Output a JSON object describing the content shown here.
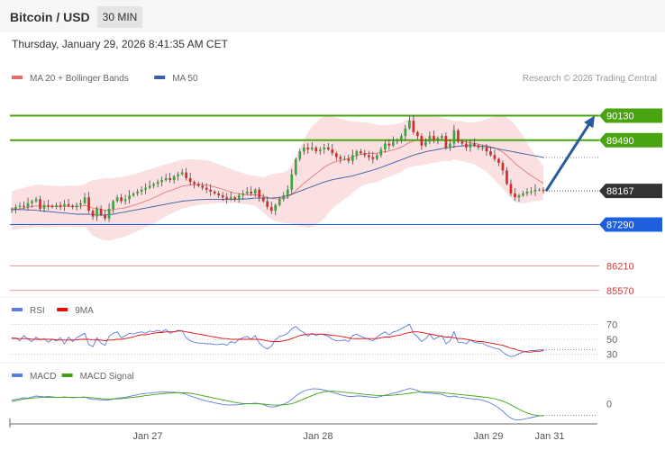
{
  "header": {
    "title": "Bitcoin / USD",
    "timeframe": "30 MIN",
    "datetime": "Thursday, January 29, 2026 8:41:35 AM CET"
  },
  "colors": {
    "bull": "#3fa33f",
    "bear": "#d62b2b",
    "bb_fill": "#f5c6c6",
    "ma20": "#e86b6b",
    "ma50": "#3a5ea8",
    "resistance": "#4aa310",
    "support": "#1e5fe0",
    "target_line": "#e05a5a",
    "arrow": "#2a5aa0",
    "rsi": "#5b7fe0",
    "rsi_ma": "#e01010",
    "macd": "#5b7fe0",
    "macd_signal": "#3fa310"
  },
  "chart_data": [
    {
      "type": "candlestick",
      "legend": [
        {
          "label": "MA 20 + Bollinger Bands",
          "color": "#e86b6b"
        },
        {
          "label": "MA 50",
          "color": "#3a5ea8"
        }
      ],
      "watermark": "Research © 2026 Trading Central",
      "ylim": [
        85400,
        90800
      ],
      "x_labels": [
        "Jan 27",
        "Jan 28",
        "Jan 29",
        "Jan 31"
      ],
      "levels": [
        {
          "value": 90130,
          "label": "90130",
          "kind": "resistance"
        },
        {
          "value": 89490,
          "label": "89490",
          "kind": "resistance"
        },
        {
          "value": 87290,
          "label": "87290",
          "kind": "support"
        },
        {
          "value": 86210,
          "label": "86210",
          "kind": "target"
        },
        {
          "value": 85570,
          "label": "85570",
          "kind": "target"
        }
      ],
      "last_price": {
        "value": 88167,
        "label": "88167"
      },
      "forecast_arrow": {
        "from": 88167,
        "to": 90130
      },
      "closes": [
        87700,
        87750,
        87780,
        87750,
        87850,
        87900,
        87950,
        87700,
        87800,
        87780,
        87750,
        87800,
        87760,
        87820,
        87780,
        87750,
        87800,
        87850,
        88000,
        87650,
        87500,
        87700,
        87550,
        87450,
        87700,
        87900,
        88000,
        87900,
        87950,
        88050,
        88100,
        88150,
        88200,
        88250,
        88300,
        88350,
        88400,
        88450,
        88500,
        88450,
        88550,
        88600,
        88650,
        88500,
        88400,
        88350,
        88300,
        88250,
        88200,
        88150,
        88100,
        88050,
        88000,
        87950,
        88000,
        87950,
        88050,
        88100,
        88150,
        88100,
        88200,
        88000,
        87900,
        87750,
        87650,
        87800,
        87950,
        88050,
        88200,
        88600,
        89000,
        89200,
        89300,
        89250,
        89300,
        89200,
        89250,
        89300,
        89250,
        89150,
        89050,
        89000,
        89000,
        88950,
        89100,
        89200,
        89150,
        89100,
        89050,
        89000,
        89100,
        89250,
        89400,
        89350,
        89450,
        89500,
        89600,
        89800,
        90000,
        89700,
        89600,
        89350,
        89450,
        89600,
        89500,
        89550,
        89600,
        89300,
        89400,
        89750,
        89450,
        89400,
        89300,
        89400,
        89350,
        89300,
        89300,
        89200,
        89100,
        89000,
        88900,
        88700,
        88350,
        88100,
        88000,
        88050,
        88100,
        88150,
        88150,
        88200,
        88200,
        88167
      ],
      "ma20": [
        87650,
        87680,
        87700,
        87720,
        87740,
        87760,
        87780,
        87770,
        87770,
        87760,
        87760,
        87760,
        87760,
        87770,
        87770,
        87760,
        87760,
        87770,
        87790,
        87760,
        87720,
        87710,
        87690,
        87660,
        87660,
        87680,
        87700,
        87710,
        87730,
        87760,
        87790,
        87820,
        87860,
        87900,
        87940,
        87990,
        88040,
        88090,
        88140,
        88170,
        88210,
        88250,
        88290,
        88310,
        88320,
        88330,
        88330,
        88330,
        88320,
        88300,
        88270,
        88240,
        88210,
        88170,
        88140,
        88110,
        88090,
        88080,
        88070,
        88060,
        88070,
        88050,
        88030,
        88000,
        87970,
        87960,
        87960,
        87970,
        88010,
        88080,
        88170,
        88270,
        88370,
        88450,
        88540,
        88620,
        88700,
        88780,
        88850,
        88900,
        88940,
        88960,
        88990,
        89010,
        89050,
        89090,
        89120,
        89140,
        89150,
        89150,
        89150,
        89170,
        89190,
        89210,
        89240,
        89270,
        89310,
        89370,
        89430,
        89470,
        89490,
        89490,
        89500,
        89510,
        89510,
        89510,
        89510,
        89500,
        89480,
        89500,
        89480,
        89460,
        89440,
        89420,
        89410,
        89390,
        89370,
        89350,
        89320,
        89290,
        89240,
        89180,
        89090,
        88990,
        88890,
        88800,
        88720,
        88640,
        88570,
        88500,
        88430,
        88370
      ],
      "bb_upper": [
        88150,
        88200,
        88220,
        88250,
        88280,
        88300,
        88330,
        88320,
        88320,
        88310,
        88300,
        88300,
        88290,
        88300,
        88310,
        88300,
        88300,
        88320,
        88350,
        88400,
        88450,
        88460,
        88480,
        88500,
        88500,
        88510,
        88520,
        88530,
        88550,
        88580,
        88600,
        88630,
        88660,
        88700,
        88730,
        88760,
        88800,
        88830,
        88860,
        88890,
        88920,
        88950,
        88980,
        88990,
        88990,
        88990,
        88980,
        88970,
        88960,
        88940,
        88900,
        88860,
        88820,
        88780,
        88740,
        88700,
        88660,
        88630,
        88600,
        88580,
        88560,
        88540,
        88530,
        88560,
        88600,
        88620,
        88630,
        88650,
        88700,
        88850,
        89050,
        89300,
        89500,
        89700,
        89850,
        89950,
        90050,
        90100,
        90120,
        90100,
        90080,
        90050,
        90020,
        90000,
        89980,
        89970,
        89960,
        89950,
        89940,
        89920,
        89900,
        89880,
        89880,
        89890,
        89900,
        89920,
        89950,
        90000,
        90080,
        90130,
        90150,
        90150,
        90140,
        90130,
        90120,
        90100,
        90080,
        90050,
        90020,
        90000,
        90000,
        89980,
        89960,
        89950,
        89960,
        89980,
        90000,
        90040,
        90080,
        90120,
        90150,
        90120,
        90080,
        90000,
        89900,
        89750,
        89600,
        89420,
        89250,
        89100,
        88950,
        88800
      ],
      "bb_lower": [
        87150,
        87160,
        87180,
        87190,
        87200,
        87220,
        87230,
        87220,
        87220,
        87210,
        87220,
        87220,
        87230,
        87240,
        87230,
        87220,
        87220,
        87220,
        87230,
        87120,
        87000,
        86950,
        86900,
        86880,
        86880,
        86900,
        86920,
        86950,
        86980,
        87020,
        87070,
        87120,
        87170,
        87220,
        87270,
        87320,
        87380,
        87440,
        87500,
        87560,
        87610,
        87660,
        87700,
        87730,
        87760,
        87780,
        87800,
        87810,
        87820,
        87830,
        87840,
        87850,
        87850,
        87850,
        87850,
        87850,
        87840,
        87830,
        87820,
        87800,
        87780,
        87700,
        87600,
        87500,
        87420,
        87380,
        87350,
        87330,
        87320,
        87310,
        87290,
        87240,
        87240,
        87200,
        87220,
        87290,
        87350,
        87460,
        87580,
        87700,
        87800,
        87870,
        87960,
        88020,
        88120,
        88210,
        88280,
        88330,
        88360,
        88380,
        88400,
        88460,
        88500,
        88530,
        88580,
        88620,
        88670,
        88740,
        88780,
        88810,
        88830,
        88830,
        88860,
        88890,
        88900,
        88920,
        88940,
        88950,
        88940,
        89000,
        88960,
        88940,
        88920,
        88890,
        88860,
        88800,
        88740,
        88660,
        88560,
        88460,
        88330,
        88240,
        88100,
        87980,
        87880,
        87850,
        87840,
        87860,
        87890,
        87900,
        87910,
        87940
      ],
      "ma50": [
        87700,
        87690,
        87680,
        87680,
        87670,
        87670,
        87660,
        87650,
        87640,
        87630,
        87620,
        87610,
        87600,
        87590,
        87580,
        87570,
        87560,
        87560,
        87560,
        87560,
        87550,
        87540,
        87540,
        87540,
        87550,
        87560,
        87580,
        87600,
        87620,
        87640,
        87660,
        87680,
        87700,
        87720,
        87740,
        87760,
        87780,
        87800,
        87820,
        87840,
        87860,
        87880,
        87900,
        87910,
        87920,
        87930,
        87940,
        87940,
        87950,
        87950,
        87950,
        87950,
        87950,
        87950,
        87950,
        87950,
        87950,
        87960,
        87960,
        87970,
        87980,
        87980,
        87980,
        87980,
        87980,
        87990,
        88000,
        88020,
        88050,
        88080,
        88120,
        88160,
        88200,
        88240,
        88280,
        88320,
        88360,
        88400,
        88430,
        88460,
        88480,
        88500,
        88520,
        88540,
        88560,
        88590,
        88620,
        88650,
        88680,
        88710,
        88740,
        88780,
        88820,
        88860,
        88900,
        88940,
        88980,
        89020,
        89060,
        89100,
        89130,
        89160,
        89190,
        89210,
        89230,
        89250,
        89270,
        89290,
        89300,
        89320,
        89330,
        89340,
        89350,
        89350,
        89350,
        89340,
        89330,
        89320,
        89300,
        89280,
        89260,
        89240,
        89220,
        89200,
        89180,
        89160,
        89140,
        89120,
        89100,
        89080,
        89060,
        89040
      ]
    },
    {
      "type": "line",
      "legend": [
        {
          "label": "RSI",
          "color": "#5b7fe0"
        },
        {
          "label": "9MA",
          "color": "#e01010"
        }
      ],
      "ylim": [
        20,
        80
      ],
      "ticks": [
        "70",
        "50",
        "30"
      ],
      "rsi": [
        50,
        52,
        48,
        55,
        50,
        47,
        53,
        49,
        51,
        46,
        50,
        48,
        52,
        44,
        53,
        47,
        52,
        55,
        58,
        43,
        40,
        52,
        45,
        42,
        54,
        58,
        60,
        52,
        55,
        58,
        57,
        59,
        60,
        58,
        61,
        60,
        62,
        60,
        63,
        58,
        60,
        62,
        61,
        52,
        48,
        46,
        45,
        45,
        44,
        44,
        43,
        43,
        44,
        42,
        47,
        45,
        50,
        52,
        54,
        50,
        55,
        45,
        40,
        37,
        41,
        49,
        54,
        55,
        58,
        64,
        67,
        62,
        59,
        54,
        58,
        55,
        57,
        56,
        54,
        50,
        48,
        48,
        49,
        47,
        55,
        57,
        54,
        52,
        50,
        48,
        53,
        57,
        60,
        56,
        60,
        61,
        64,
        67,
        70,
        58,
        53,
        47,
        51,
        57,
        50,
        53,
        55,
        44,
        48,
        60,
        46,
        46,
        44,
        49,
        46,
        45,
        45,
        42,
        40,
        38,
        37,
        33,
        29,
        27,
        28,
        31,
        33,
        34,
        35,
        35,
        36,
        36
      ],
      "rsi_ma": [
        52,
        51,
        51,
        51,
        51,
        50,
        50,
        50,
        50,
        50,
        50,
        49,
        49,
        49,
        49,
        49,
        49,
        50,
        50,
        50,
        49,
        49,
        49,
        48,
        49,
        49,
        50,
        50,
        51,
        52,
        53,
        55,
        56,
        56,
        57,
        58,
        59,
        59,
        60,
        60,
        60,
        61,
        61,
        60,
        59,
        58,
        57,
        56,
        55,
        54,
        53,
        52,
        51,
        51,
        50,
        50,
        50,
        50,
        50,
        50,
        50,
        50,
        49,
        48,
        47,
        47,
        47,
        48,
        49,
        51,
        53,
        55,
        56,
        57,
        57,
        57,
        57,
        57,
        56,
        55,
        55,
        54,
        53,
        52,
        51,
        51,
        51,
        51,
        51,
        51,
        51,
        52,
        53,
        53,
        54,
        55,
        56,
        58,
        59,
        60,
        60,
        59,
        58,
        57,
        56,
        55,
        54,
        53,
        53,
        52,
        51,
        51,
        50,
        49,
        48,
        47,
        47,
        46,
        45,
        44,
        43,
        42,
        40,
        38,
        37,
        35,
        34,
        33,
        33,
        34,
        34,
        35
      ],
      "dotted_level": 36
    },
    {
      "type": "line",
      "legend": [
        {
          "label": "MACD",
          "color": "#5b7fe0"
        },
        {
          "label": "MACD Signal",
          "color": "#3fa310"
        }
      ],
      "ylim": [
        -500,
        500
      ],
      "ticks": [
        "0"
      ],
      "macd": [
        80,
        100,
        120,
        140,
        130,
        160,
        180,
        170,
        160,
        170,
        160,
        150,
        150,
        160,
        150,
        140,
        150,
        150,
        160,
        120,
        100,
        100,
        90,
        80,
        90,
        110,
        130,
        140,
        150,
        170,
        190,
        210,
        230,
        240,
        250,
        260,
        270,
        280,
        280,
        270,
        270,
        260,
        250,
        220,
        180,
        150,
        120,
        90,
        60,
        40,
        20,
        0,
        -20,
        -30,
        -30,
        -30,
        -20,
        -10,
        0,
        0,
        10,
        0,
        -20,
        -60,
        -80,
        -70,
        -40,
        -10,
        30,
        100,
        180,
        250,
        300,
        330,
        350,
        350,
        340,
        320,
        300,
        270,
        240,
        210,
        190,
        170,
        170,
        180,
        180,
        170,
        160,
        150,
        150,
        170,
        200,
        220,
        250,
        270,
        300,
        330,
        360,
        340,
        310,
        270,
        250,
        250,
        240,
        230,
        220,
        180,
        160,
        180,
        160,
        150,
        130,
        120,
        110,
        100,
        80,
        50,
        10,
        -40,
        -100,
        -180,
        -270,
        -340,
        -380,
        -380,
        -370,
        -350,
        -330,
        -310,
        -290,
        -280
      ],
      "signal": [
        50,
        70,
        90,
        110,
        120,
        130,
        140,
        145,
        150,
        150,
        150,
        150,
        150,
        150,
        150,
        150,
        150,
        150,
        150,
        145,
        140,
        130,
        120,
        110,
        110,
        110,
        115,
        120,
        130,
        140,
        150,
        160,
        175,
        190,
        200,
        215,
        225,
        235,
        245,
        250,
        255,
        260,
        260,
        255,
        245,
        230,
        210,
        190,
        170,
        150,
        130,
        110,
        90,
        70,
        50,
        30,
        15,
        5,
        0,
        -5,
        -5,
        -5,
        -10,
        -20,
        -30,
        -35,
        -35,
        -30,
        -20,
        0,
        30,
        70,
        110,
        150,
        190,
        230,
        260,
        280,
        290,
        295,
        290,
        280,
        270,
        260,
        250,
        240,
        230,
        220,
        210,
        200,
        195,
        190,
        190,
        195,
        200,
        210,
        220,
        230,
        245,
        260,
        270,
        275,
        275,
        275,
        270,
        265,
        260,
        250,
        240,
        230,
        220,
        210,
        200,
        190,
        180,
        170,
        160,
        150,
        135,
        115,
        90,
        60,
        20,
        -30,
        -80,
        -130,
        -180,
        -220,
        -250,
        -270,
        -285,
        -290
      ],
      "dotted_level": -280
    }
  ]
}
